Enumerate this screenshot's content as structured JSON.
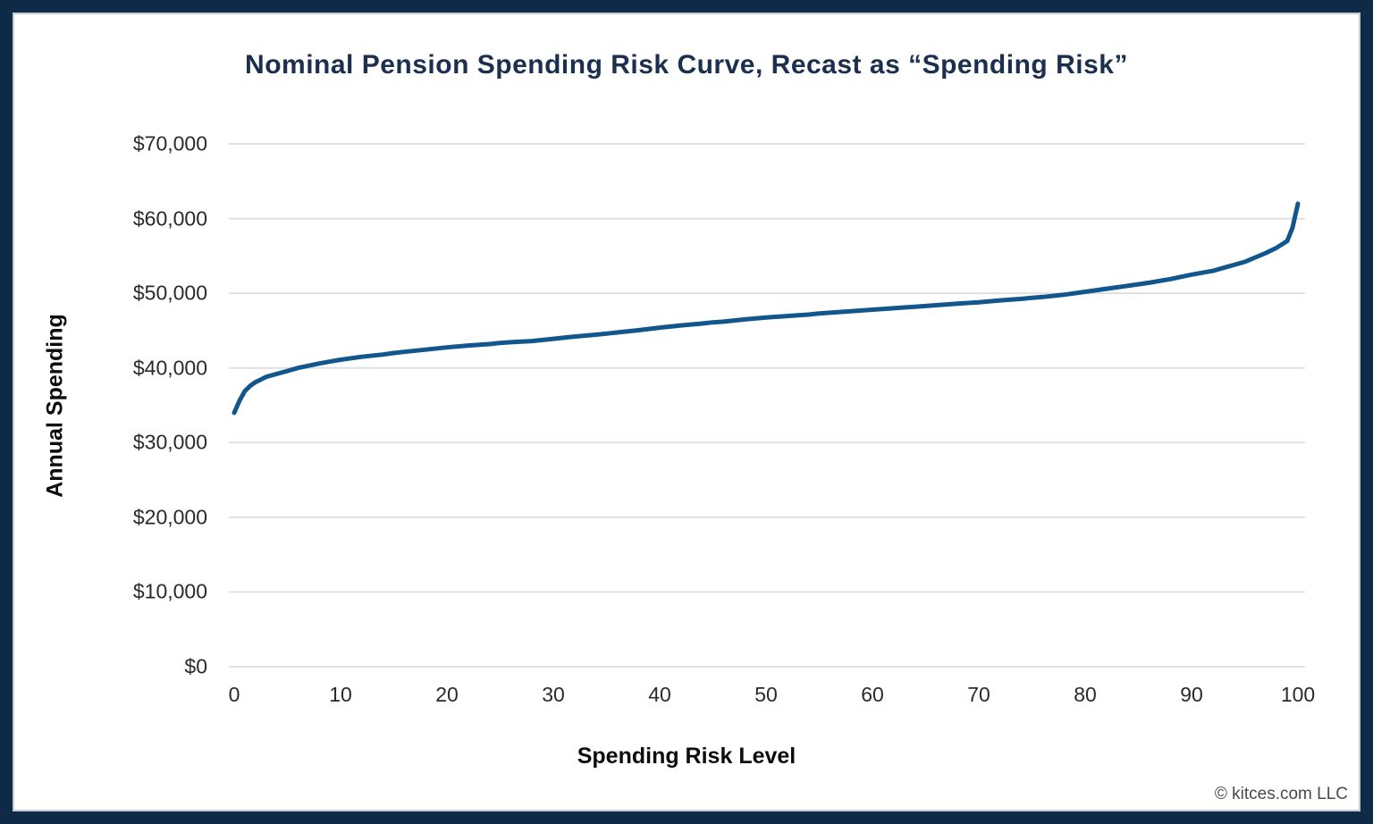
{
  "frame": {
    "border_color": "#0e2a47",
    "inner_line_color": "#c3cbd4",
    "background": "#ffffff"
  },
  "header": {
    "title": "Nominal Pension Spending Risk Curve, Recast as “Spending Risk”",
    "title_color": "#1b2f4f"
  },
  "footer": {
    "copyright": "© kitces.com LLC"
  },
  "chart_data": {
    "type": "line",
    "title": "Nominal Pension Spending Risk Curve, Recast as “Spending Risk”",
    "xlabel": "Spending Risk Level",
    "ylabel": "Annual Spending",
    "xlim": [
      0,
      100
    ],
    "ylim": [
      0,
      70000
    ],
    "x_ticks": [
      0,
      10,
      20,
      30,
      40,
      50,
      60,
      70,
      80,
      90,
      100
    ],
    "y_ticks": [
      0,
      10000,
      20000,
      30000,
      40000,
      50000,
      60000,
      70000
    ],
    "y_tick_labels": [
      "$0",
      "$10,000",
      "$20,000",
      "$30,000",
      "$40,000",
      "$50,000",
      "$60,000",
      "$70,000"
    ],
    "grid": "horizontal-only",
    "gridline_color": "#e0e0e0",
    "legend": "none",
    "line_color": "#11568c",
    "line_width": 5,
    "series": [
      {
        "name": "Annual Spending",
        "x": [
          0,
          0.5,
          1,
          1.5,
          2,
          3,
          4,
          5,
          6,
          7,
          8,
          9,
          10,
          12,
          14,
          15,
          16,
          18,
          20,
          22,
          24,
          25,
          26,
          28,
          30,
          32,
          34,
          35,
          36,
          38,
          40,
          42,
          44,
          45,
          46,
          48,
          50,
          52,
          54,
          55,
          56,
          58,
          60,
          62,
          64,
          65,
          66,
          68,
          70,
          72,
          74,
          75,
          76,
          78,
          80,
          82,
          84,
          85,
          86,
          88,
          90,
          91,
          92,
          93,
          94,
          95,
          96,
          97,
          98,
          99,
          99.5,
          100
        ],
        "y": [
          34000,
          35600,
          36900,
          37600,
          38100,
          38800,
          39200,
          39600,
          40000,
          40300,
          40600,
          40850,
          41100,
          41500,
          41800,
          42000,
          42150,
          42450,
          42750,
          43000,
          43200,
          43350,
          43450,
          43600,
          43900,
          44200,
          44450,
          44600,
          44750,
          45050,
          45400,
          45700,
          45950,
          46100,
          46200,
          46500,
          46750,
          46950,
          47150,
          47300,
          47400,
          47600,
          47800,
          48000,
          48200,
          48300,
          48400,
          48600,
          48800,
          49050,
          49250,
          49400,
          49500,
          49800,
          50200,
          50600,
          51000,
          51200,
          51400,
          51900,
          52500,
          52750,
          53000,
          53400,
          53800,
          54200,
          54800,
          55400,
          56100,
          57000,
          58800,
          62000
        ]
      }
    ]
  }
}
